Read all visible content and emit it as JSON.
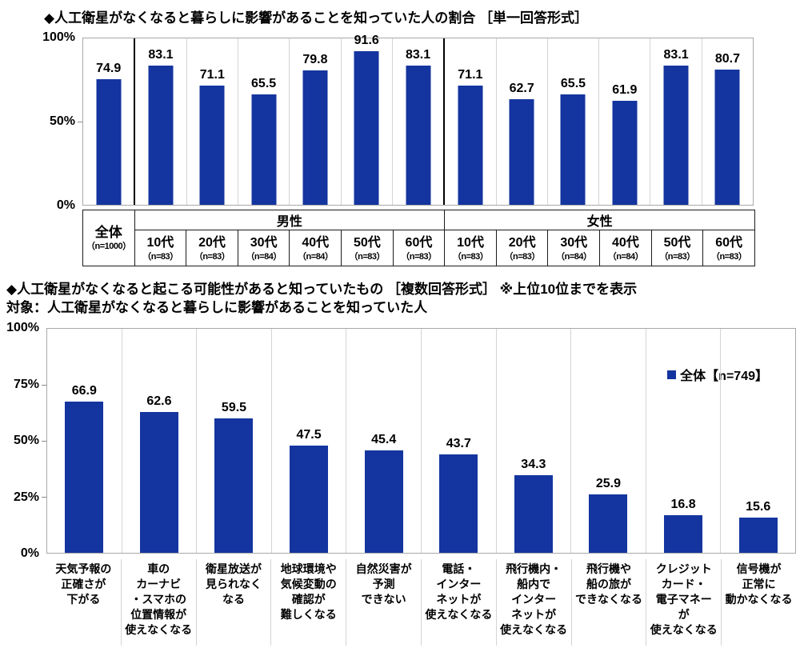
{
  "colors": {
    "bar": "#14359F",
    "axis_line": "#a8a8a8",
    "column_separator": "#d4d4d4",
    "group_divider": "#000000",
    "table_border": "#1a1a1a",
    "text": "#000000"
  },
  "chart_data": [
    {
      "type": "bar",
      "title": "◆人工衛星がなくなると暮らしに影響があることを知っていた人の割合 ［単一回答形式］",
      "ylim": [
        0,
        100
      ],
      "yticks": [
        "100%",
        "50%",
        "0%"
      ],
      "grid": false,
      "overall": {
        "label": "全体",
        "n": "（n=1000）",
        "value": 74.9
      },
      "groups": [
        {
          "name": "男性",
          "items": [
            {
              "label": "10代",
              "n": "（n=83）",
              "value": 83.1
            },
            {
              "label": "20代",
              "n": "（n=83）",
              "value": 71.1
            },
            {
              "label": "30代",
              "n": "（n=84）",
              "value": 65.5
            },
            {
              "label": "40代",
              "n": "（n=84）",
              "value": 79.8
            },
            {
              "label": "50代",
              "n": "（n=83）",
              "value": 91.6
            },
            {
              "label": "60代",
              "n": "（n=83）",
              "value": 83.1
            }
          ]
        },
        {
          "name": "女性",
          "items": [
            {
              "label": "10代",
              "n": "（n=83）",
              "value": 71.1
            },
            {
              "label": "20代",
              "n": "（n=83）",
              "value": 62.7
            },
            {
              "label": "30代",
              "n": "（n=84）",
              "value": 65.5
            },
            {
              "label": "40代",
              "n": "（n=84）",
              "value": 61.9
            },
            {
              "label": "50代",
              "n": "（n=83）",
              "value": 83.1
            },
            {
              "label": "60代",
              "n": "（n=83）",
              "value": 80.7
            }
          ]
        }
      ]
    },
    {
      "type": "bar",
      "title": "◆人工衛星がなくなると起こる可能性があると知っていたもの ［複数回答形式］ ※上位10位までを表示",
      "subtitle": "対象：人工衛星がなくなると暮らしに影響があることを知っていた人",
      "legend": "全体【n=749】",
      "legend_position": "upper right",
      "ylim": [
        0,
        100
      ],
      "yticks": [
        "100%",
        "75%",
        "50%",
        "25%",
        "0%"
      ],
      "grid": false,
      "categories": [
        "天気予報の\n正確さが\n下がる",
        "車の\nカーナビ\n・スマホの\n位置情報が\n使えなくなる",
        "衛星放送が\n見られなく\nなる",
        "地球環境や\n気候変動の\n確認が\n難しくなる",
        "自然災害が\n予測\nできない",
        "電話・\nインター\nネットが\n使えなくなる",
        "飛行機内・\n船内で\nインター\nネットが\n使えなくなる",
        "飛行機や\n船の旅が\nできなくなる",
        "クレジット\nカード・\n電子マネー\nが\n使えなくなる",
        "信号機が\n正常に\n動かなくなる"
      ],
      "values": [
        66.9,
        62.6,
        59.5,
        47.5,
        45.4,
        43.7,
        34.3,
        25.9,
        16.8,
        15.6
      ]
    }
  ]
}
